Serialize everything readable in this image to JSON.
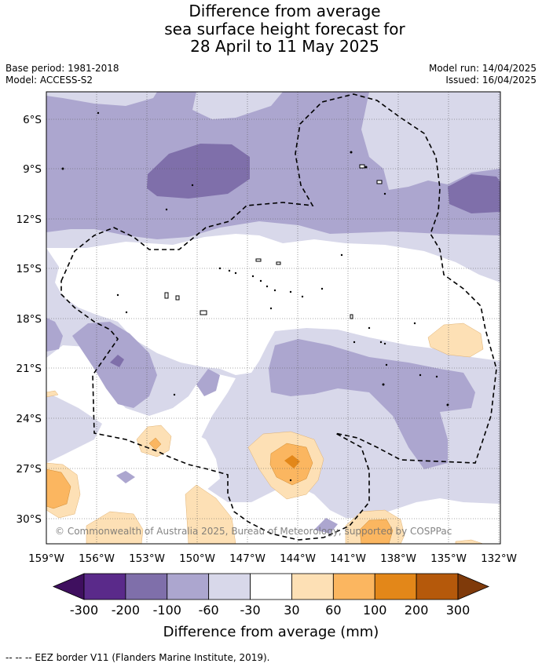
{
  "title": {
    "line1": "Difference from average",
    "line2": "sea surface height forecast for",
    "line3": "28 April to 11 May 2025"
  },
  "meta": {
    "base_period": "Base period: 1981-2018",
    "model": "Model: ACCESS-S2",
    "model_run": "Model run: 14/04/2025",
    "issued": "Issued: 16/04/2025"
  },
  "map": {
    "lat_ticks": [
      "6°S",
      "9°S",
      "12°S",
      "15°S",
      "18°S",
      "21°S",
      "24°S",
      "27°S",
      "30°S"
    ],
    "lon_ticks": [
      "159°W",
      "156°W",
      "153°W",
      "150°W",
      "147°W",
      "144°W",
      "141°W",
      "138°W",
      "135°W",
      "132°W"
    ],
    "gridlines": true,
    "credit": "© Commonwealth of Australia 2025, Bureau of Meteorology, supported by COSPPac"
  },
  "colorbar": {
    "labels": [
      "-300",
      "-200",
      "-100",
      "-60",
      "-30",
      "30",
      "60",
      "100",
      "200",
      "300"
    ],
    "colors": [
      "#3f0f5f",
      "#5a2a8a",
      "#7f6faa",
      "#aca6cf",
      "#d8d8ea",
      "#ffffff",
      "#fde0b5",
      "#fbb660",
      "#e38719",
      "#b5590b",
      "#7f3a0a"
    ],
    "title": "Difference from average (mm)"
  },
  "legend_note": "--  --  -- EEZ border V11 (Flanders Marine Institute, 2019)."
}
